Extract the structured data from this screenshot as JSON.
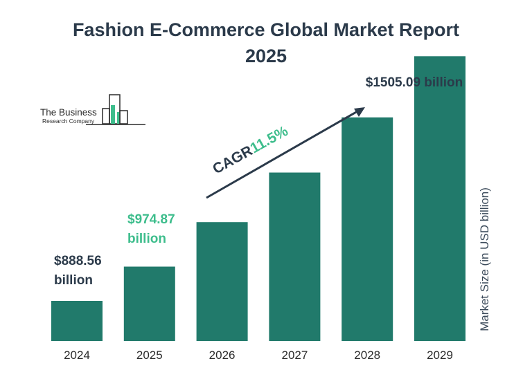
{
  "chart_data": {
    "type": "bar",
    "title_line1": "Fashion E-Commerce Global Market Report",
    "title_line2": "2025",
    "categories": [
      "2024",
      "2025",
      "2026",
      "2027",
      "2028",
      "2029"
    ],
    "values": [
      888.56,
      974.87,
      1086.98,
      1212.0,
      1351.0,
      1505.09
    ],
    "ylabel": "Market Size (in USD billion)",
    "xlabel": "",
    "data_labels": {
      "first": {
        "line1": "$888.56",
        "line2": "billion"
      },
      "second": {
        "line1": "$974.87",
        "line2": "billion"
      },
      "last": "$1505.09 billion"
    },
    "annotation": {
      "prefix": "CAGR",
      "value": "11.5%"
    },
    "bar_color": "#217a6b",
    "grid": false,
    "legend": "none"
  },
  "logo": {
    "line1": "The Business",
    "line2": "Research Company"
  },
  "colors": {
    "title": "#2b3a4a",
    "accent_green": "#3dbd8c",
    "bar": "#217a6b"
  }
}
